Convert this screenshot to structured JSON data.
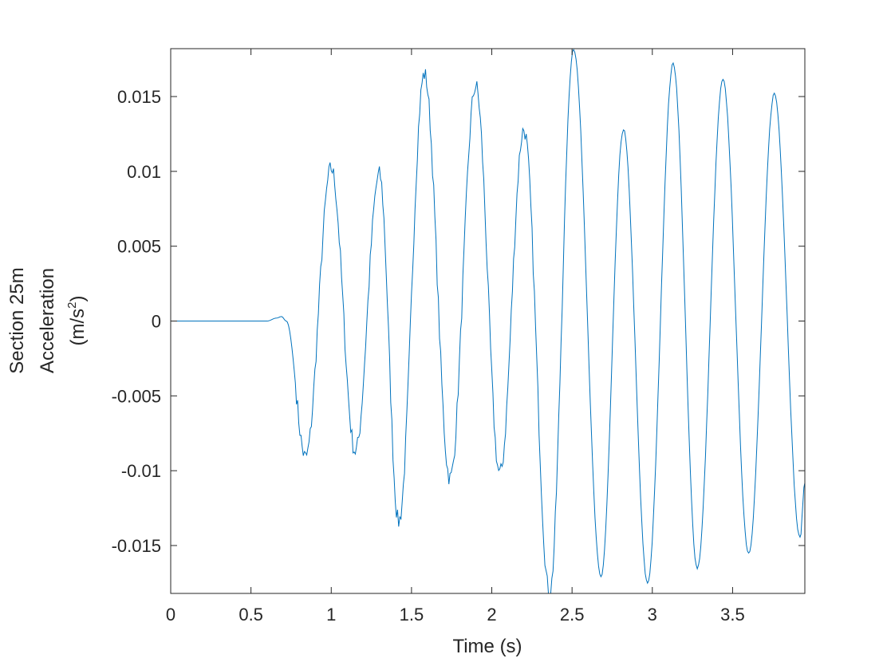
{
  "chart_data": {
    "type": "line",
    "xlabel": "Time (s)",
    "ylabel_lines": [
      "Section 25m",
      "Acceleration"
    ],
    "ylabel_unit": {
      "prefix": "(m/s",
      "superscript": "2",
      "suffix": ")"
    },
    "xlim": [
      0,
      3.95
    ],
    "ylim": [
      -0.0182,
      0.0182
    ],
    "xticks": [
      {
        "value": 0,
        "label": "0"
      },
      {
        "value": 0.5,
        "label": "0.5"
      },
      {
        "value": 1,
        "label": "1"
      },
      {
        "value": 1.5,
        "label": "1.5"
      },
      {
        "value": 2,
        "label": "2"
      },
      {
        "value": 2.5,
        "label": "2.5"
      },
      {
        "value": 3,
        "label": "3"
      },
      {
        "value": 3.5,
        "label": "3.5"
      }
    ],
    "yticks": [
      {
        "value": 0.015,
        "label": "0.015"
      },
      {
        "value": 0.01,
        "label": "0.01"
      },
      {
        "value": 0.005,
        "label": "0.005"
      },
      {
        "value": 0,
        "label": "0"
      },
      {
        "value": -0.005,
        "label": "-0.005"
      },
      {
        "value": -0.01,
        "label": "-0.01"
      },
      {
        "value": -0.015,
        "label": "-0.015"
      }
    ],
    "grid": false,
    "series": [
      {
        "color": "#0072BD",
        "points": [
          [
            0,
            0
          ],
          [
            0.6,
            0
          ],
          [
            0.66,
            0.0002
          ],
          [
            0.69,
            0.0003
          ],
          [
            0.72,
            0
          ],
          [
            0.84,
            -0.0091
          ],
          [
            1.0,
            0.0102
          ],
          [
            1.15,
            -0.0087
          ],
          [
            1.3,
            0.0098
          ],
          [
            1.42,
            -0.0134
          ],
          [
            1.58,
            0.0165
          ],
          [
            1.74,
            -0.0105
          ],
          [
            1.9,
            0.0157
          ],
          [
            2.05,
            -0.0102
          ],
          [
            2.2,
            0.0128
          ],
          [
            2.36,
            -0.0182
          ],
          [
            2.51,
            0.0182
          ],
          [
            2.68,
            -0.0171
          ],
          [
            2.82,
            0.0128
          ],
          [
            2.97,
            -0.0175
          ],
          [
            3.13,
            0.0172
          ],
          [
            3.28,
            -0.0165
          ],
          [
            3.44,
            0.0161
          ],
          [
            3.6,
            -0.0155
          ],
          [
            3.76,
            0.0152
          ],
          [
            3.92,
            -0.0145
          ],
          [
            3.95,
            -0.0108
          ]
        ]
      }
    ]
  }
}
